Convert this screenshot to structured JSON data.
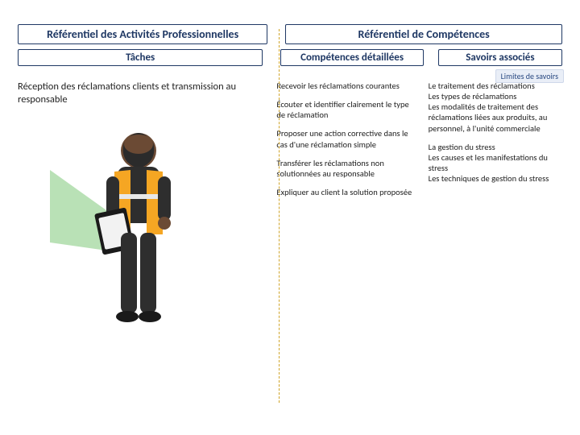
{
  "headers": {
    "activities": "Référentiel des Activités Professionnelles",
    "competences": "Référentiel de Compétences"
  },
  "subheaders": {
    "tasks": "Tâches",
    "competences": "Compétences détaillées",
    "savoirs": "Savoirs associés",
    "limits": "Limites de savoirs"
  },
  "task": {
    "title": "Réception des réclamations clients et transmission au responsable"
  },
  "competence_items": [
    "Recevoir les réclamations courantes",
    "Écouter et identifier clairement le type de réclamation",
    "Proposer une action corrective dans le cas d'une réclamation simple",
    "Transférer les réclamations non solutionnées au responsable",
    "Expliquer au client la solution proposée"
  ],
  "savoir_paragraphs": [
    "Le traitement des réclamations\nLes types de réclamations\nLes modalités de traitement des réclamations liées aux produits, au personnel, à l'unité commerciale",
    "La gestion du stress\nLes causes et les manifestations du stress\nLes techniques de gestion du stress"
  ],
  "illustration": {
    "bg": "#ffffff",
    "vest": "#f5a623",
    "vest_stripe": "#e8e8e8",
    "skin": "#6b4a34",
    "beard": "#2b2b2b",
    "shirt": "#2e2e2e",
    "pants": "#2e2e2e",
    "shoes": "#1a1a1a",
    "clipboard": "#1a1a1a",
    "paper": "#f2f2f2",
    "light_beam": "#7fc97a",
    "light_opacity": 0.55
  },
  "palette": {
    "border": "#1f3864",
    "text_heading": "#1f3864",
    "divider": "#d0a52a",
    "limits_bg": "#e9eef7",
    "limits_text": "#2a4a82"
  },
  "fontsizes": {
    "header": 14,
    "subheader": 13,
    "task_title": 12.5,
    "body": 10.5,
    "limits": 10
  }
}
